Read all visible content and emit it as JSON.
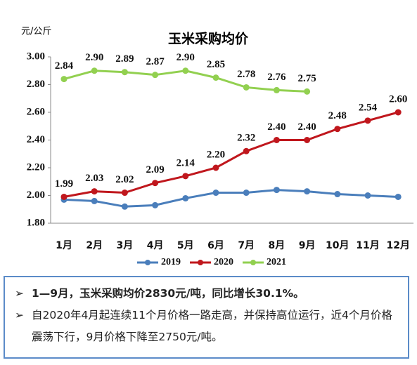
{
  "chart_data": {
    "type": "line",
    "title": "玉米采购均价",
    "y_unit": "元/公斤",
    "categories": [
      "1月",
      "2月",
      "3月",
      "4月",
      "5月",
      "6月",
      "7月",
      "8月",
      "9月",
      "10月",
      "11月",
      "12月"
    ],
    "series": [
      {
        "name": "2019",
        "color": "#4a7ebb",
        "values": [
          1.97,
          1.96,
          1.92,
          1.93,
          1.98,
          2.02,
          2.02,
          2.04,
          2.03,
          2.01,
          2.0,
          1.99
        ]
      },
      {
        "name": "2020",
        "color": "#c0171d",
        "values": [
          1.99,
          2.03,
          2.02,
          2.09,
          2.14,
          2.2,
          2.32,
          2.4,
          2.4,
          2.48,
          2.54,
          2.6
        ],
        "value_labels": [
          "1.99",
          "2.03",
          "2.02",
          "2.09",
          "2.14",
          "2.20",
          "2.32",
          "2.40",
          "2.40",
          "2.48",
          "2.54",
          "2.60"
        ]
      },
      {
        "name": "2021",
        "color": "#92d050",
        "values": [
          2.84,
          2.9,
          2.89,
          2.87,
          2.9,
          2.85,
          2.78,
          2.76,
          2.75,
          null,
          null,
          null
        ],
        "value_labels": [
          "2.84",
          "2.90",
          "2.89",
          "2.87",
          "2.90",
          "2.85",
          "2.78",
          "2.76",
          "2.75",
          null,
          null,
          null
        ]
      }
    ],
    "ylim": [
      1.8,
      3.0
    ],
    "yticks": [
      {
        "value": 1.8,
        "label": "1.80"
      },
      {
        "value": 2.0,
        "label": "2.00"
      },
      {
        "value": 2.2,
        "label": "2.20"
      },
      {
        "value": 2.4,
        "label": "2.40"
      },
      {
        "value": 2.6,
        "label": "2.60"
      },
      {
        "value": 2.8,
        "label": "2.80"
      },
      {
        "value": 3.0,
        "label": "3.00"
      }
    ],
    "grid": false,
    "legend": "bottom"
  },
  "notes": [
    "1—9月，玉米采购均价2830元/吨，同比增长30.1%。",
    "自2020年4月起连续11个月价格一路走高，并保持高位运行，近4个月价格震荡下行，9月价格下降至2750元/吨。"
  ]
}
